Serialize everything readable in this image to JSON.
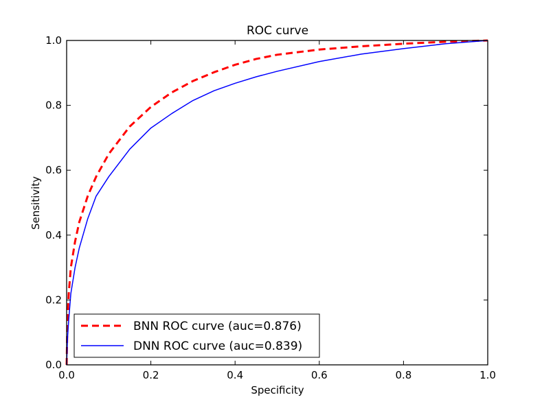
{
  "chart_data": {
    "type": "line",
    "title": "ROC curve",
    "xlabel": "Specificity",
    "ylabel": "Sensitivity",
    "xlim": [
      0.0,
      1.0
    ],
    "ylim": [
      0.0,
      1.0
    ],
    "xticks": [
      "0.0",
      "0.2",
      "0.4",
      "0.6",
      "0.8",
      "1.0"
    ],
    "yticks": [
      "0.0",
      "0.2",
      "0.4",
      "0.6",
      "0.8",
      "1.0"
    ],
    "grid": false,
    "legend_position": "lower-left",
    "series": [
      {
        "name": "BNN ROC curve (auc=0.876)",
        "color": "#ff0000",
        "style": "dashed",
        "x": [
          0,
          0.002,
          0.005,
          0.01,
          0.02,
          0.03,
          0.05,
          0.07,
          0.1,
          0.15,
          0.2,
          0.25,
          0.3,
          0.35,
          0.4,
          0.45,
          0.5,
          0.6,
          0.7,
          0.8,
          0.9,
          1.0
        ],
        "y": [
          0,
          0.14,
          0.22,
          0.3,
          0.38,
          0.44,
          0.52,
          0.58,
          0.65,
          0.735,
          0.795,
          0.84,
          0.875,
          0.902,
          0.925,
          0.943,
          0.956,
          0.972,
          0.982,
          0.99,
          0.996,
          1.0
        ]
      },
      {
        "name": "DNN ROC curve (auc=0.839)",
        "color": "#0000ff",
        "style": "solid",
        "x": [
          0,
          0.002,
          0.005,
          0.01,
          0.02,
          0.03,
          0.05,
          0.07,
          0.1,
          0.15,
          0.2,
          0.25,
          0.3,
          0.35,
          0.4,
          0.45,
          0.5,
          0.6,
          0.7,
          0.8,
          0.9,
          1.0
        ],
        "y": [
          0,
          0.08,
          0.14,
          0.22,
          0.3,
          0.36,
          0.45,
          0.52,
          0.58,
          0.665,
          0.73,
          0.775,
          0.815,
          0.845,
          0.868,
          0.888,
          0.905,
          0.935,
          0.958,
          0.975,
          0.99,
          1.0
        ]
      }
    ]
  }
}
